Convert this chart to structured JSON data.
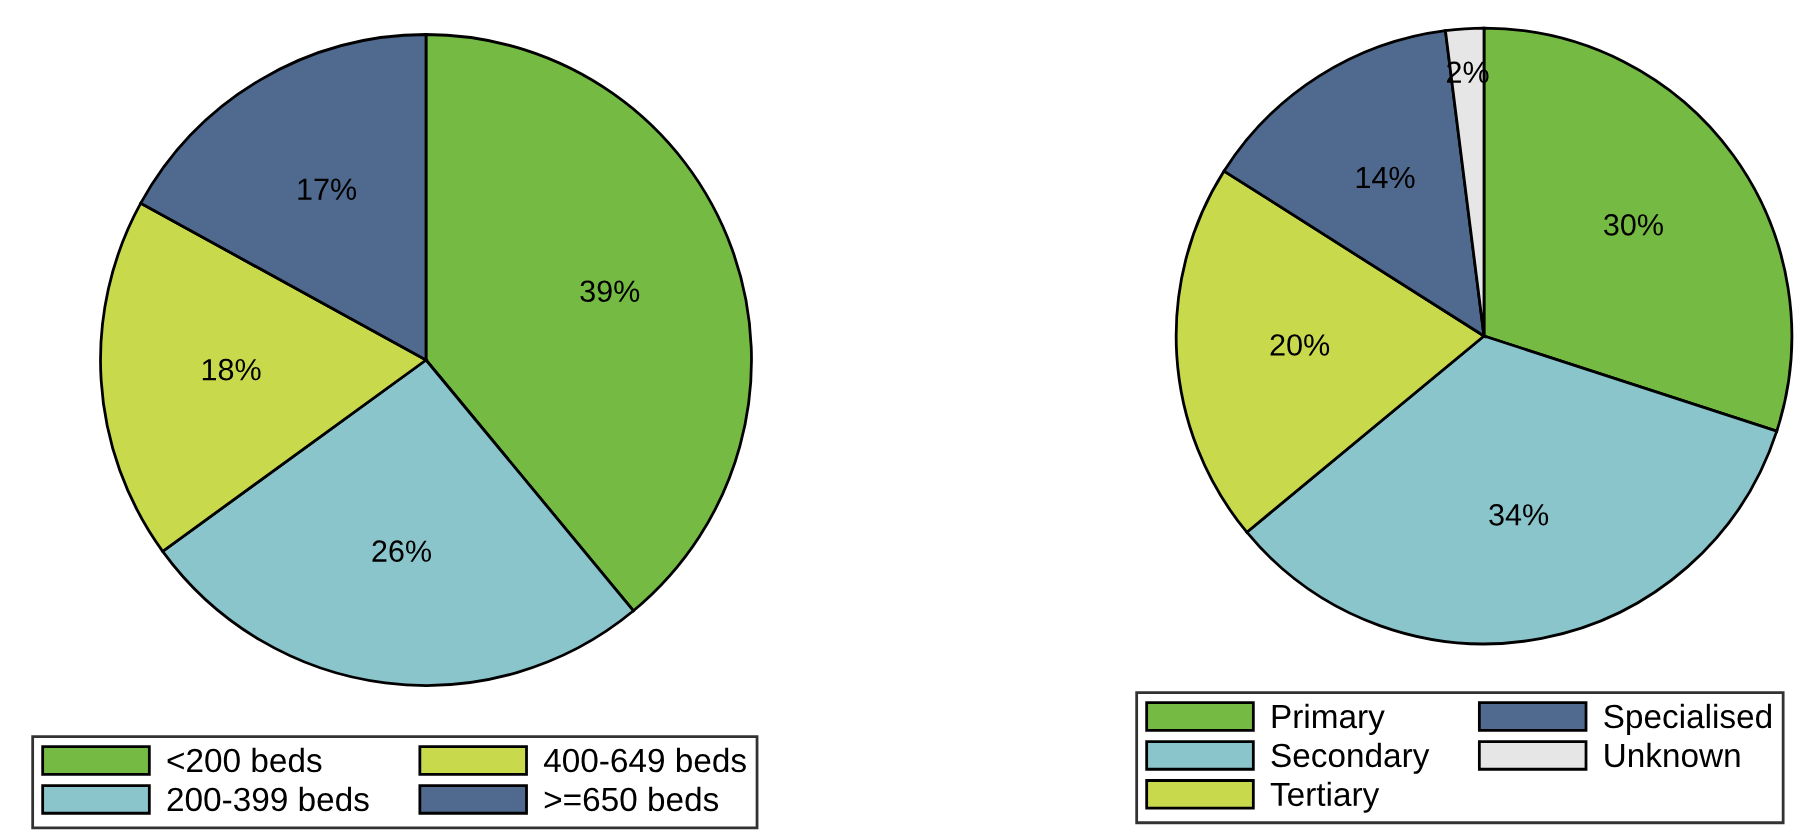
{
  "chart_data": [
    {
      "type": "pie",
      "categories": [
        "<200 beds",
        "200-399 beds",
        "400-649 beds",
        ">=650 beds"
      ],
      "values": [
        39,
        26,
        18,
        17
      ],
      "colors": [
        "#75bb43",
        "#8bc5cc",
        "#c8d94c",
        "#506a8f"
      ],
      "value_labels": [
        "39%",
        "26%",
        "18%",
        "17%"
      ],
      "legend": "bottom"
    },
    {
      "type": "pie",
      "categories": [
        "Primary",
        "Secondary",
        "Tertiary",
        "Specialised",
        "Unknown"
      ],
      "values": [
        30,
        34,
        20,
        14,
        2
      ],
      "colors": [
        "#75bb43",
        "#8bc5cc",
        "#c8d94c",
        "#506a8f",
        "#e6e6e6"
      ],
      "value_labels": [
        "30%",
        "34%",
        "20%",
        "14%",
        "2%"
      ],
      "legend": "bottom"
    }
  ]
}
